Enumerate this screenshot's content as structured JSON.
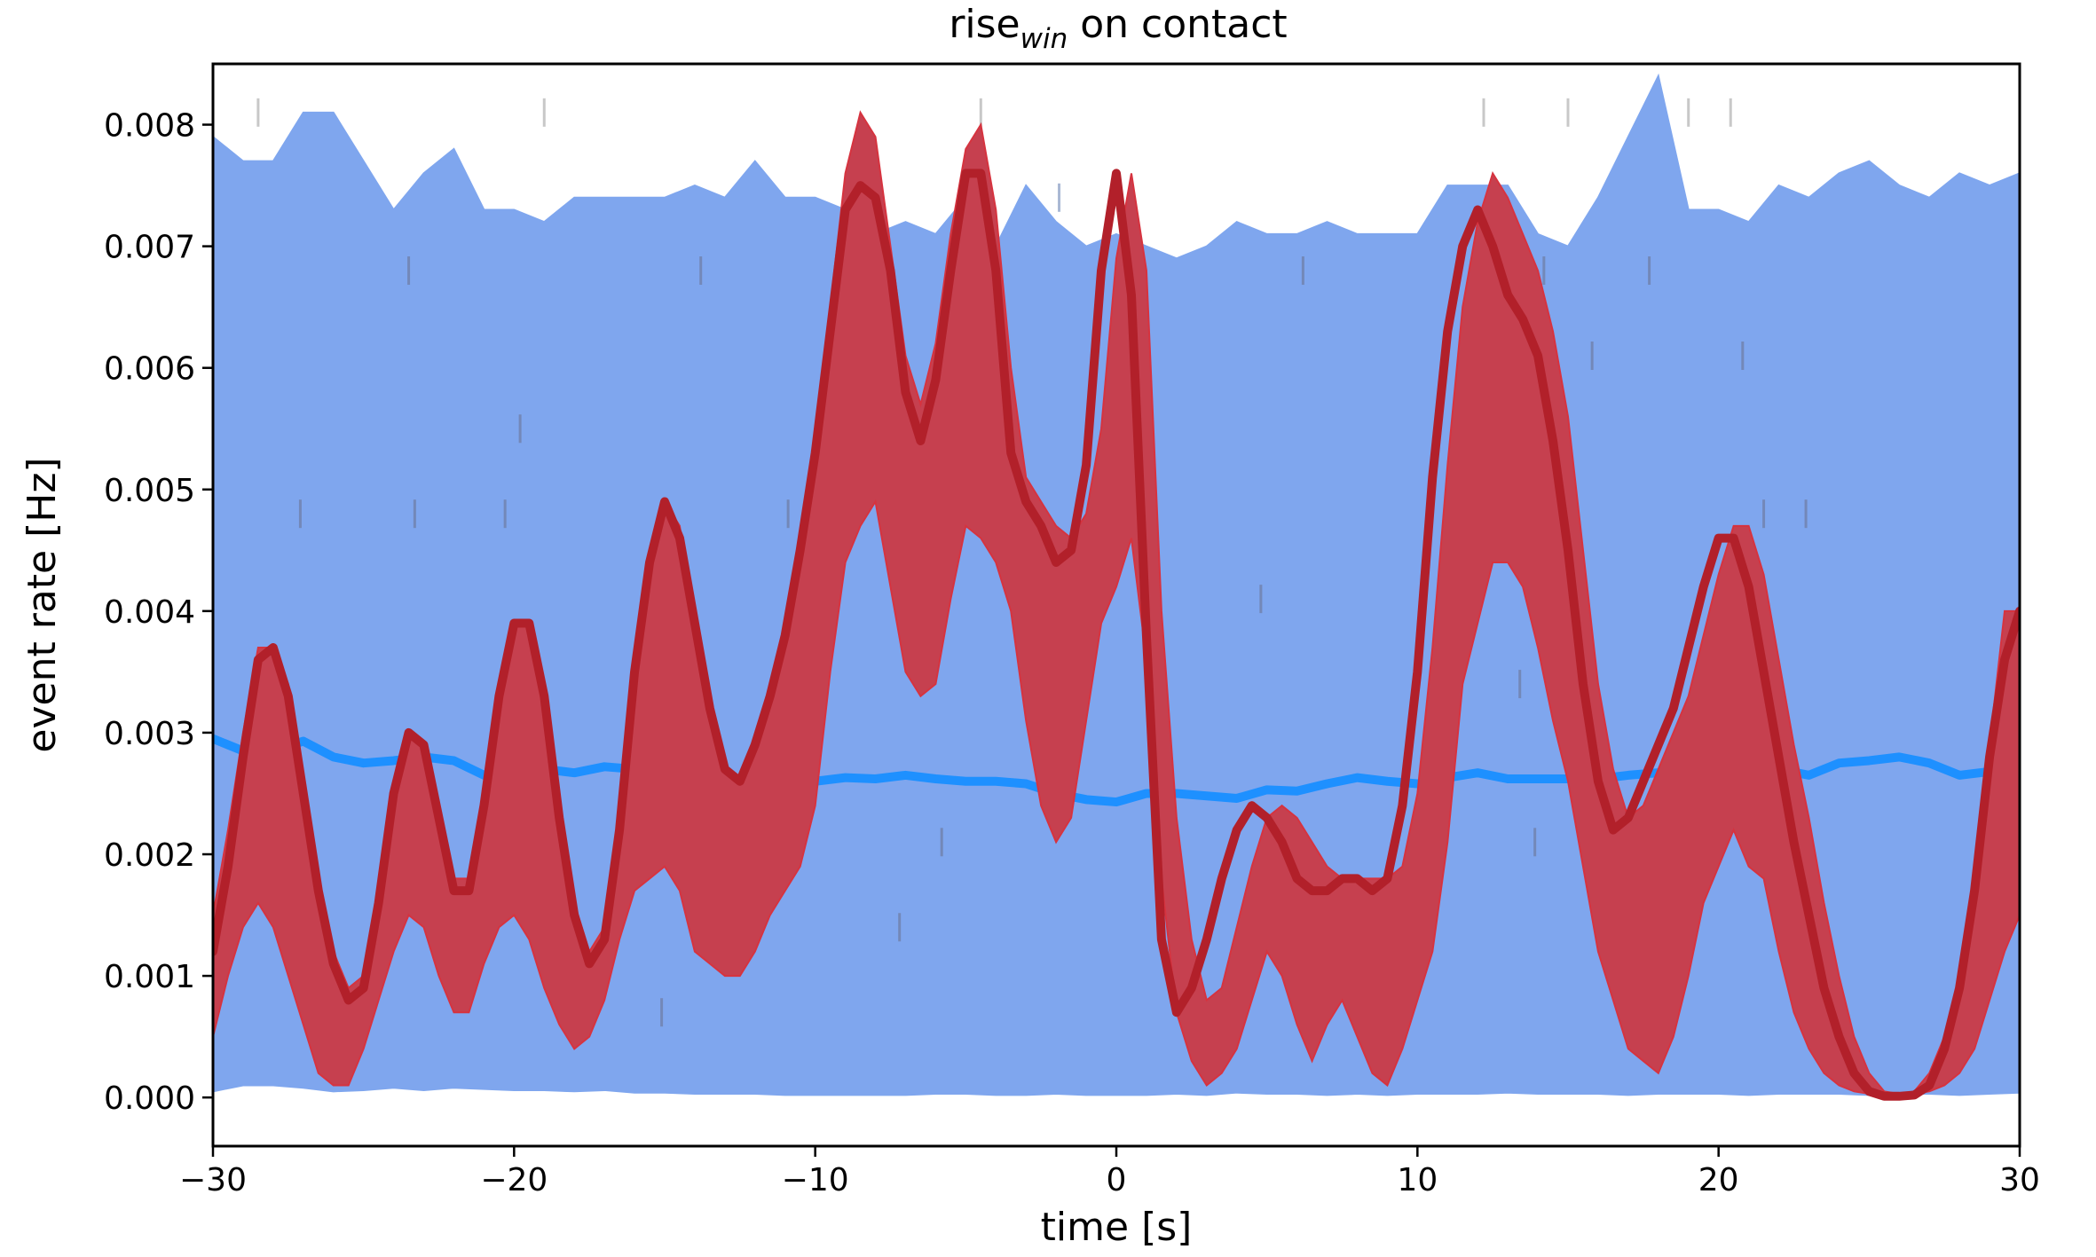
{
  "chart_data": {
    "type": "area",
    "title": {
      "main": "rise",
      "subscript": "win",
      "rest": " on contact"
    },
    "xlabel": "time [s]",
    "ylabel": "event rate [Hz]",
    "xlim": [
      -30,
      30
    ],
    "ylim": [
      -0.0004,
      0.0085
    ],
    "xticks": [
      -30,
      -20,
      -10,
      0,
      10,
      20,
      30
    ],
    "xtick_labels": [
      "−30",
      "−20",
      "−10",
      "0",
      "10",
      "20",
      "30"
    ],
    "yticks": [
      0.0,
      0.001,
      0.002,
      0.003,
      0.004,
      0.005,
      0.006,
      0.007,
      0.008
    ],
    "ytick_labels": [
      "0.000",
      "0.001",
      "0.002",
      "0.003",
      "0.004",
      "0.005",
      "0.006",
      "0.007",
      "0.008"
    ],
    "grid": false,
    "colors": {
      "band_fill": "#7fa6ee",
      "band_mean": "#1e90ff",
      "obs_fill": "#c6404f",
      "obs_edge": "#d6333f",
      "obs_line": "#b2202a",
      "tick_marks": "#8899aa"
    },
    "series": [
      {
        "role": "null-band",
        "x": [
          -30,
          -29,
          -28,
          -27,
          -26,
          -25,
          -24,
          -23,
          -22,
          -21,
          -20,
          -19,
          -18,
          -17,
          -16,
          -15,
          -14,
          -13,
          -12,
          -11,
          -10,
          -9,
          -8,
          -7,
          -6,
          -5,
          -4,
          -3,
          -2,
          -1,
          0,
          1,
          2,
          3,
          4,
          5,
          6,
          7,
          8,
          9,
          10,
          11,
          12,
          13,
          14,
          15,
          16,
          17,
          18,
          19,
          20,
          21,
          22,
          23,
          24,
          25,
          26,
          27,
          28,
          29,
          30
        ],
        "upper": [
          0.0079,
          0.0077,
          0.0077,
          0.0081,
          0.0081,
          0.0077,
          0.0073,
          0.0076,
          0.0078,
          0.0073,
          0.0073,
          0.0072,
          0.0074,
          0.0074,
          0.0074,
          0.0074,
          0.0075,
          0.0074,
          0.0077,
          0.0074,
          0.0074,
          0.0073,
          0.0071,
          0.0072,
          0.0071,
          0.0074,
          0.007,
          0.0075,
          0.0072,
          0.007,
          0.0071,
          0.007,
          0.0069,
          0.007,
          0.0072,
          0.0071,
          0.0071,
          0.0072,
          0.0071,
          0.0071,
          0.0071,
          0.0075,
          0.0075,
          0.0075,
          0.0071,
          0.007,
          0.0074,
          0.0079,
          0.0084,
          0.0073,
          0.0073,
          0.0072,
          0.0075,
          0.0074,
          0.0076,
          0.0077,
          0.0075,
          0.0074,
          0.0076,
          0.0075,
          0.0076
        ],
        "lower": [
          5e-05,
          0.0001,
          0.0001,
          8e-05,
          5e-05,
          6e-05,
          8e-05,
          6e-05,
          8e-05,
          7e-05,
          6e-05,
          6e-05,
          5e-05,
          6e-05,
          4e-05,
          4e-05,
          3e-05,
          3e-05,
          3e-05,
          2e-05,
          2e-05,
          2e-05,
          2e-05,
          2e-05,
          3e-05,
          3e-05,
          2e-05,
          2e-05,
          3e-05,
          2e-05,
          2e-05,
          2e-05,
          3e-05,
          2e-05,
          4e-05,
          3e-05,
          3e-05,
          2e-05,
          3e-05,
          2e-05,
          3e-05,
          3e-05,
          3e-05,
          4e-05,
          3e-05,
          3e-05,
          3e-05,
          2e-05,
          3e-05,
          3e-05,
          3e-05,
          2e-05,
          3e-05,
          3e-05,
          3e-05,
          2e-05,
          3e-05,
          3e-05,
          2e-05,
          3e-05,
          4e-05
        ],
        "mean": [
          0.00295,
          0.00285,
          0.00285,
          0.00293,
          0.0028,
          0.00275,
          0.00277,
          0.0028,
          0.00277,
          0.00265,
          0.0027,
          0.0027,
          0.00267,
          0.00272,
          0.0027,
          0.00265,
          0.0026,
          0.00257,
          0.0026,
          0.00258,
          0.0026,
          0.00263,
          0.00262,
          0.00265,
          0.00262,
          0.0026,
          0.0026,
          0.00258,
          0.0025,
          0.00245,
          0.00243,
          0.0025,
          0.0025,
          0.00248,
          0.00246,
          0.00253,
          0.00252,
          0.00258,
          0.00263,
          0.0026,
          0.00258,
          0.00263,
          0.00267,
          0.00262,
          0.00262,
          0.00262,
          0.00262,
          0.00265,
          0.00267,
          0.00267,
          0.0027,
          0.00268,
          0.0027,
          0.00265,
          0.00275,
          0.00277,
          0.0028,
          0.00275,
          0.00265,
          0.00268,
          0.0028
        ]
      },
      {
        "role": "observed",
        "x": [
          -30,
          -29.5,
          -29,
          -28.5,
          -28,
          -27.5,
          -27,
          -26.5,
          -26,
          -25.5,
          -25,
          -24.5,
          -24,
          -23.5,
          -23,
          -22.5,
          -22,
          -21.5,
          -21,
          -20.5,
          -20,
          -19.5,
          -19,
          -18.5,
          -18,
          -17.5,
          -17,
          -16.5,
          -16,
          -15.5,
          -15,
          -14.5,
          -14,
          -13.5,
          -13,
          -12.5,
          -12,
          -11.5,
          -11,
          -10.5,
          -10,
          -9.5,
          -9,
          -8.5,
          -8,
          -7.5,
          -7,
          -6.5,
          -6,
          -5.5,
          -5,
          -4.5,
          -4,
          -3.5,
          -3,
          -2.5,
          -2,
          -1.5,
          -1,
          -0.5,
          0,
          0.5,
          1,
          1.5,
          2,
          2.5,
          3,
          3.5,
          4,
          4.5,
          5,
          5.5,
          6,
          6.5,
          7,
          7.5,
          8,
          8.5,
          9,
          9.5,
          10,
          10.5,
          11,
          11.5,
          12,
          12.5,
          13,
          13.5,
          14,
          14.5,
          15,
          15.5,
          16,
          16.5,
          17,
          17.5,
          18,
          18.5,
          19,
          19.5,
          20,
          20.5,
          21,
          21.5,
          22,
          22.5,
          23,
          23.5,
          24,
          24.5,
          25,
          25.5,
          26,
          26.5,
          27,
          27.5,
          28,
          28.5,
          29,
          29.5,
          30
        ],
        "upper": [
          0.0015,
          0.0022,
          0.003,
          0.0037,
          0.0037,
          0.0034,
          0.0026,
          0.0018,
          0.0012,
          0.0009,
          0.001,
          0.0017,
          0.0026,
          0.003,
          0.0029,
          0.0023,
          0.0018,
          0.0018,
          0.0025,
          0.0034,
          0.0039,
          0.0039,
          0.0033,
          0.0024,
          0.0016,
          0.0012,
          0.0014,
          0.0023,
          0.0036,
          0.0045,
          0.0049,
          0.0047,
          0.0039,
          0.0032,
          0.0027,
          0.0026,
          0.0029,
          0.0034,
          0.0038,
          0.0045,
          0.0054,
          0.0065,
          0.0076,
          0.0081,
          0.0079,
          0.007,
          0.0061,
          0.0057,
          0.0062,
          0.0071,
          0.0078,
          0.008,
          0.0073,
          0.006,
          0.0051,
          0.0049,
          0.0047,
          0.0046,
          0.0048,
          0.0055,
          0.0069,
          0.0076,
          0.0068,
          0.004,
          0.0023,
          0.0013,
          0.0008,
          0.0009,
          0.0014,
          0.0019,
          0.0023,
          0.0024,
          0.0023,
          0.0021,
          0.0019,
          0.0018,
          0.0018,
          0.0018,
          0.0018,
          0.0019,
          0.0025,
          0.0037,
          0.0052,
          0.0065,
          0.0072,
          0.0076,
          0.0074,
          0.0071,
          0.0068,
          0.0063,
          0.0056,
          0.0045,
          0.0034,
          0.0027,
          0.0023,
          0.0024,
          0.0027,
          0.003,
          0.0033,
          0.0038,
          0.0043,
          0.0047,
          0.0047,
          0.0043,
          0.0036,
          0.0029,
          0.0023,
          0.0016,
          0.001,
          0.0005,
          0.0002,
          5e-05,
          3e-05,
          5e-05,
          0.0002,
          0.0005,
          0.001,
          0.0018,
          0.0029,
          0.004,
          0.004
        ],
        "lower": [
          0.0005,
          0.001,
          0.0014,
          0.0016,
          0.0014,
          0.001,
          0.0006,
          0.0002,
          0.0001,
          0.0001,
          0.0004,
          0.0008,
          0.0012,
          0.0015,
          0.0014,
          0.001,
          0.0007,
          0.0007,
          0.0011,
          0.0014,
          0.0015,
          0.0013,
          0.0009,
          0.0006,
          0.0004,
          0.0005,
          0.0008,
          0.0013,
          0.0017,
          0.0018,
          0.0019,
          0.0017,
          0.0012,
          0.0011,
          0.001,
          0.001,
          0.0012,
          0.0015,
          0.0017,
          0.0019,
          0.0024,
          0.0035,
          0.0044,
          0.0047,
          0.0049,
          0.0042,
          0.0035,
          0.0033,
          0.0034,
          0.0041,
          0.0047,
          0.0046,
          0.0044,
          0.004,
          0.0031,
          0.0024,
          0.0021,
          0.0023,
          0.0031,
          0.0039,
          0.0042,
          0.0046,
          0.0036,
          0.0018,
          0.0007,
          0.0003,
          0.0001,
          0.0002,
          0.0004,
          0.0008,
          0.0012,
          0.001,
          0.0006,
          0.0003,
          0.0006,
          0.0008,
          0.0005,
          0.0002,
          0.0001,
          0.0004,
          0.0008,
          0.0012,
          0.0021,
          0.0034,
          0.0039,
          0.0044,
          0.0044,
          0.0042,
          0.0037,
          0.0031,
          0.0026,
          0.0019,
          0.0012,
          0.0008,
          0.0004,
          0.0003,
          0.0002,
          0.0005,
          0.001,
          0.0016,
          0.0019,
          0.0022,
          0.0019,
          0.0018,
          0.0012,
          0.0007,
          0.0004,
          0.0002,
          0.0001,
          5e-05,
          3e-05,
          3e-05,
          3e-05,
          3e-05,
          5e-05,
          0.0001,
          0.0002,
          0.0004,
          0.0008,
          0.0012,
          0.0015
        ],
        "line": [
          0.0012,
          0.0019,
          0.0028,
          0.0036,
          0.0037,
          0.0033,
          0.0025,
          0.0017,
          0.0011,
          0.0008,
          0.0009,
          0.0016,
          0.0025,
          0.003,
          0.0029,
          0.0023,
          0.0017,
          0.0017,
          0.0024,
          0.0033,
          0.0039,
          0.0039,
          0.0033,
          0.0023,
          0.0015,
          0.0011,
          0.0013,
          0.0022,
          0.0035,
          0.0044,
          0.0049,
          0.0046,
          0.0039,
          0.0032,
          0.0027,
          0.0026,
          0.0029,
          0.0033,
          0.0038,
          0.0045,
          0.0053,
          0.0063,
          0.0073,
          0.0075,
          0.0074,
          0.0068,
          0.0058,
          0.0054,
          0.0059,
          0.0068,
          0.0076,
          0.0076,
          0.0068,
          0.0053,
          0.0049,
          0.0047,
          0.0044,
          0.0045,
          0.0052,
          0.0068,
          0.0076,
          0.0066,
          0.0038,
          0.0013,
          0.0007,
          0.0009,
          0.0013,
          0.0018,
          0.0022,
          0.0024,
          0.0023,
          0.0021,
          0.0018,
          0.0017,
          0.0017,
          0.0018,
          0.0018,
          0.0017,
          0.0018,
          0.0024,
          0.0035,
          0.0051,
          0.0063,
          0.007,
          0.0073,
          0.007,
          0.0066,
          0.0064,
          0.0061,
          0.0054,
          0.0045,
          0.0034,
          0.0026,
          0.0022,
          0.0023,
          0.0026,
          0.0029,
          0.0032,
          0.0037,
          0.0042,
          0.0046,
          0.0046,
          0.0042,
          0.0035,
          0.0028,
          0.0021,
          0.0015,
          0.0009,
          0.0005,
          0.0002,
          5e-05,
          1e-05,
          1e-05,
          2e-05,
          0.0001,
          0.0004,
          0.0009,
          0.0017,
          0.0028,
          0.0036,
          0.004
        ]
      }
    ],
    "event_ticks": [
      {
        "x": -28.5,
        "y": 0.0081,
        "c": "#c8c8c8"
      },
      {
        "x": -19,
        "y": 0.0081,
        "c": "#c8c8c8"
      },
      {
        "x": -4.5,
        "y": 0.0081,
        "c": "#c8c8c8"
      },
      {
        "x": 12.2,
        "y": 0.0081,
        "c": "#c8c8c8"
      },
      {
        "x": 15,
        "y": 0.0081,
        "c": "#c8c8c8"
      },
      {
        "x": 19,
        "y": 0.0081,
        "c": "#c8c8c8"
      },
      {
        "x": 20.4,
        "y": 0.0081,
        "c": "#c8c8c8"
      },
      {
        "x": -1.9,
        "y": 0.0074,
        "c": "#a9b8d4"
      },
      {
        "x": -23.5,
        "y": 0.0068,
        "c": "#7388b8"
      },
      {
        "x": -13.8,
        "y": 0.0068,
        "c": "#7388b8"
      },
      {
        "x": -7.8,
        "y": 0.0068,
        "c": "#7388b8"
      },
      {
        "x": 6.2,
        "y": 0.0068,
        "c": "#7388b8"
      },
      {
        "x": 12.4,
        "y": 0.0068,
        "c": "#7388b8"
      },
      {
        "x": 14.2,
        "y": 0.0068,
        "c": "#7388b8"
      },
      {
        "x": 17.7,
        "y": 0.0068,
        "c": "#7388b8"
      },
      {
        "x": 15.8,
        "y": 0.0061,
        "c": "#7388b8"
      },
      {
        "x": 20.8,
        "y": 0.0061,
        "c": "#7388b8"
      },
      {
        "x": -19.8,
        "y": 0.0055,
        "c": "#7388b8"
      },
      {
        "x": -9.6,
        "y": 0.0055,
        "c": "#7388b8"
      },
      {
        "x": -27.1,
        "y": 0.0048,
        "c": "#7388b8"
      },
      {
        "x": -23.3,
        "y": 0.0048,
        "c": "#7388b8"
      },
      {
        "x": -20.3,
        "y": 0.0048,
        "c": "#7388b8"
      },
      {
        "x": -10.9,
        "y": 0.0048,
        "c": "#7388b8"
      },
      {
        "x": -9.5,
        "y": 0.0048,
        "c": "#7388b8"
      },
      {
        "x": -8.8,
        "y": 0.0048,
        "c": "#7388b8"
      },
      {
        "x": 0.5,
        "y": 0.0048,
        "c": "#7388b8"
      },
      {
        "x": 11.4,
        "y": 0.0048,
        "c": "#7388b8"
      },
      {
        "x": 21.5,
        "y": 0.0048,
        "c": "#7388b8"
      },
      {
        "x": 22.9,
        "y": 0.0048,
        "c": "#7388b8"
      },
      {
        "x": 4.8,
        "y": 0.0041,
        "c": "#7388b8"
      },
      {
        "x": 13.4,
        "y": 0.0034,
        "c": "#7388b8"
      },
      {
        "x": -5.8,
        "y": 0.0021,
        "c": "#7388b8"
      },
      {
        "x": 13.9,
        "y": 0.0021,
        "c": "#7388b8"
      },
      {
        "x": -7.2,
        "y": 0.0014,
        "c": "#7388b8"
      },
      {
        "x": 8.2,
        "y": 0.0014,
        "c": "#7388b8"
      },
      {
        "x": -15.1,
        "y": 0.0007,
        "c": "#7388b8"
      }
    ]
  }
}
